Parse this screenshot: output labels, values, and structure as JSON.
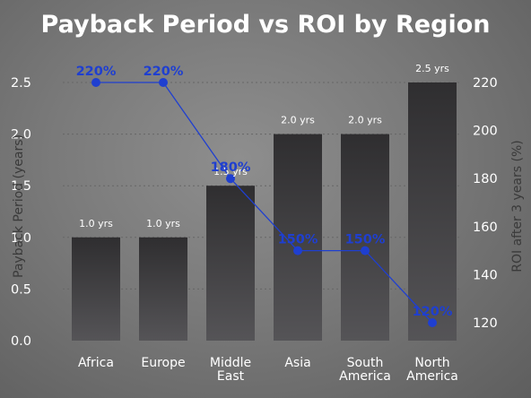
{
  "chart_data": {
    "type": "bar",
    "title": "Payback Period vs ROI by Region",
    "categories": [
      [
        "Africa"
      ],
      [
        "Europe"
      ],
      [
        "Middle",
        "East"
      ],
      [
        "Asia"
      ],
      [
        "South",
        "America"
      ],
      [
        "North",
        "America"
      ]
    ],
    "series": [
      {
        "type": "bar",
        "axis": "left",
        "values": [
          1.0,
          1.0,
          1.5,
          2.0,
          2.0,
          2.5
        ],
        "labels": [
          "1.0 yrs",
          "1.0 yrs",
          "1.5 yrs",
          "2.0 yrs",
          "2.0 yrs",
          "2.5 yrs"
        ]
      },
      {
        "type": "line",
        "axis": "right",
        "values": [
          220,
          220,
          180,
          150,
          150,
          120
        ],
        "labels": [
          "220%",
          "220%",
          "180%",
          "150%",
          "150%",
          "120%"
        ]
      }
    ],
    "ylabel": "Payback Period (years)",
    "ylabel_right": "ROI after 3 years (%)",
    "ylim": [
      0,
      2.5
    ],
    "yticks": [
      "0.0",
      "0.5",
      "1.0",
      "1.5",
      "2.0",
      "2.5"
    ],
    "ylim_right": [
      110,
      225
    ],
    "yticks_right": [
      "120",
      "140",
      "160",
      "180",
      "200",
      "220"
    ],
    "grid": "horizontal dotted",
    "colors": {
      "bar_top": "#2f2e30",
      "bar_bottom": "#555457",
      "line": "#1f3fd0",
      "grid": "#666666",
      "text": "#ffffff",
      "axis_title": "#3a3a3a"
    }
  }
}
